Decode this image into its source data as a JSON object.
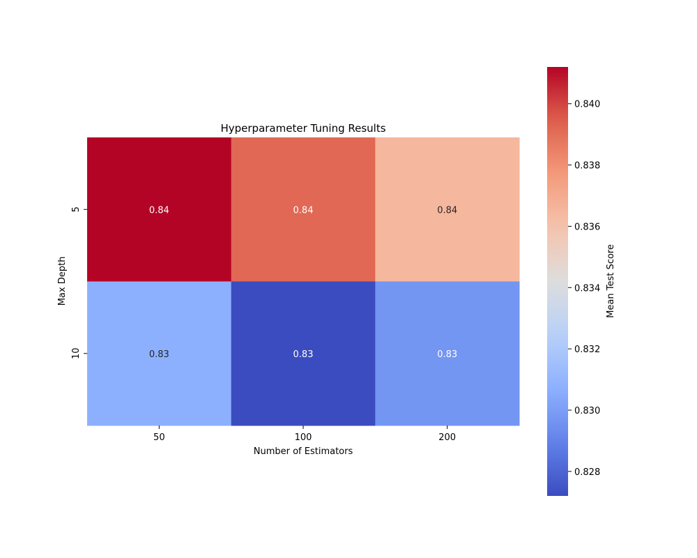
{
  "chart_data": {
    "type": "heatmap",
    "title": "Hyperparameter Tuning Results",
    "xlabel": "Number of Estimators",
    "ylabel": "Max Depth",
    "x_categories": [
      "50",
      "100",
      "200"
    ],
    "y_categories": [
      "5",
      "10"
    ],
    "values": [
      [
        0.8412,
        0.8392,
        0.8365
      ],
      [
        0.8307,
        0.8272,
        0.8297
      ]
    ],
    "cell_labels": [
      [
        "0.84",
        "0.84",
        "0.84"
      ],
      [
        "0.83",
        "0.83",
        "0.83"
      ]
    ],
    "colormap": "coolwarm",
    "colorbar": {
      "label": "Mean Test Score",
      "range": [
        0.8272,
        0.8412
      ],
      "ticks": [
        "0.828",
        "0.830",
        "0.832",
        "0.834",
        "0.836",
        "0.838",
        "0.840"
      ]
    }
  }
}
